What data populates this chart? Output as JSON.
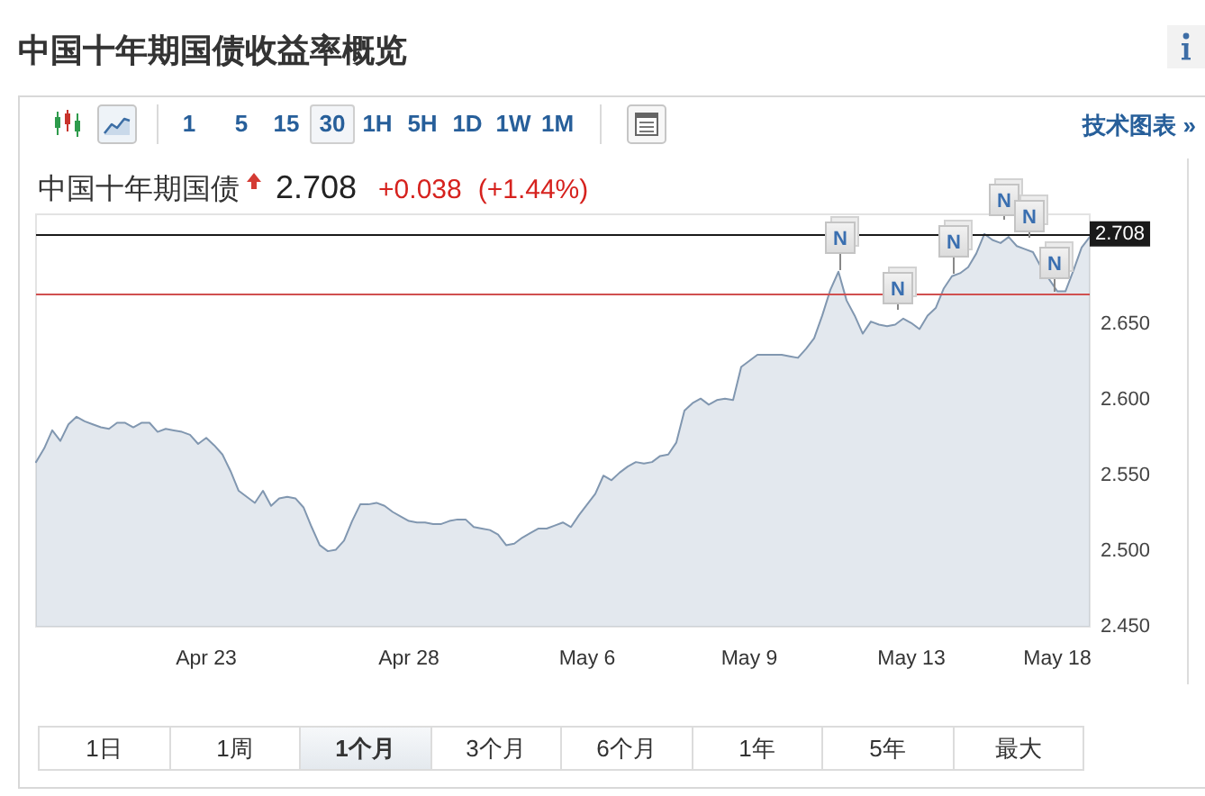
{
  "chart_data": {
    "type": "area",
    "title": "中国十年期国债收益率概览",
    "subtitle": "中国十年期国债",
    "annotations": [
      "2.708",
      "+0.038",
      "(+1.44%)",
      "1",
      "5",
      "15",
      "30",
      "1H",
      "5H",
      "1D",
      "1W",
      "1M",
      "技术图表 »",
      "1日",
      "1周",
      "1个月",
      "3个月",
      "6个月",
      "1年",
      "5年",
      "最大",
      "N",
      "N",
      "N",
      "N",
      "N",
      "N"
    ],
    "categories": [
      null,
      null,
      null,
      null,
      null,
      null,
      null,
      null,
      null,
      null,
      null,
      null,
      null,
      null,
      null,
      null,
      null,
      null,
      null,
      null,
      null,
      "Apr 23",
      null,
      null,
      null,
      null,
      null,
      null,
      null,
      null,
      null,
      null,
      null,
      null,
      null,
      null,
      null,
      null,
      null,
      null,
      null,
      null,
      null,
      null,
      null,
      null,
      "Apr 28",
      null,
      null,
      null,
      null,
      null,
      null,
      null,
      null,
      null,
      null,
      null,
      null,
      null,
      null,
      null,
      null,
      null,
      null,
      null,
      null,
      null,
      "May 6",
      null,
      null,
      null,
      null,
      null,
      null,
      null,
      null,
      null,
      null,
      null,
      null,
      null,
      null,
      null,
      null,
      null,
      null,
      null,
      "May 9",
      null,
      null,
      null,
      null,
      null,
      null,
      null,
      null,
      null,
      null,
      null,
      null,
      null,
      null,
      null,
      null,
      null,
      null,
      null,
      "May 13",
      null,
      null,
      null,
      null,
      null,
      null,
      null,
      null,
      null,
      null,
      null,
      null,
      null,
      null,
      null,
      null,
      null,
      "May 18",
      null,
      null,
      null,
      null
    ],
    "values": [
      2.559,
      2.568,
      2.58,
      2.573,
      2.584,
      2.589,
      2.586,
      2.584,
      2.582,
      2.581,
      2.585,
      2.585,
      2.582,
      2.585,
      2.585,
      2.579,
      2.581,
      2.58,
      2.579,
      2.577,
      2.571,
      2.575,
      2.57,
      2.564,
      2.553,
      2.54,
      2.536,
      2.532,
      2.54,
      2.53,
      2.535,
      2.536,
      2.535,
      2.529,
      2.516,
      2.504,
      2.5,
      2.501,
      2.507,
      2.52,
      2.531,
      2.531,
      2.532,
      2.53,
      2.526,
      2.523,
      2.52,
      2.519,
      2.519,
      2.518,
      2.518,
      2.52,
      2.521,
      2.521,
      2.516,
      2.515,
      2.514,
      2.511,
      2.504,
      2.505,
      2.509,
      2.512,
      2.515,
      2.515,
      2.517,
      2.519,
      2.516,
      2.524,
      2.531,
      2.538,
      2.55,
      2.547,
      2.552,
      2.556,
      2.559,
      2.558,
      2.559,
      2.563,
      2.564,
      2.572,
      2.593,
      2.598,
      2.601,
      2.597,
      2.6,
      2.601,
      2.6,
      2.622,
      2.626,
      2.63,
      2.63,
      2.63,
      2.63,
      2.629,
      2.628,
      2.634,
      2.641,
      2.656,
      2.673,
      2.685,
      2.666,
      2.656,
      2.644,
      2.652,
      2.65,
      2.649,
      2.65,
      2.654,
      2.651,
      2.647,
      2.656,
      2.661,
      2.674,
      2.682,
      2.684,
      2.688,
      2.697,
      2.71,
      2.706,
      2.704,
      2.708,
      2.702,
      2.7,
      2.698,
      2.688,
      2.68,
      2.672,
      2.672,
      2.686,
      2.701,
      2.708
    ],
    "color": "#8197b0",
    "ylim": [
      2.45,
      2.723
    ],
    "yticks": [
      {
        "value": 2.45,
        "label": "2.450"
      },
      {
        "value": 2.5,
        "label": "2.500"
      },
      {
        "value": 2.55,
        "label": "2.550"
      },
      {
        "value": 2.6,
        "label": "2.600"
      },
      {
        "value": 2.65,
        "label": "2.650"
      }
    ],
    "ref_lines": [
      {
        "axis": "y",
        "value": 2.708,
        "label": "2.708",
        "color": "#1a1a1a"
      },
      {
        "axis": "y",
        "value": 2.67,
        "color": "#d05050"
      }
    ]
  }
}
